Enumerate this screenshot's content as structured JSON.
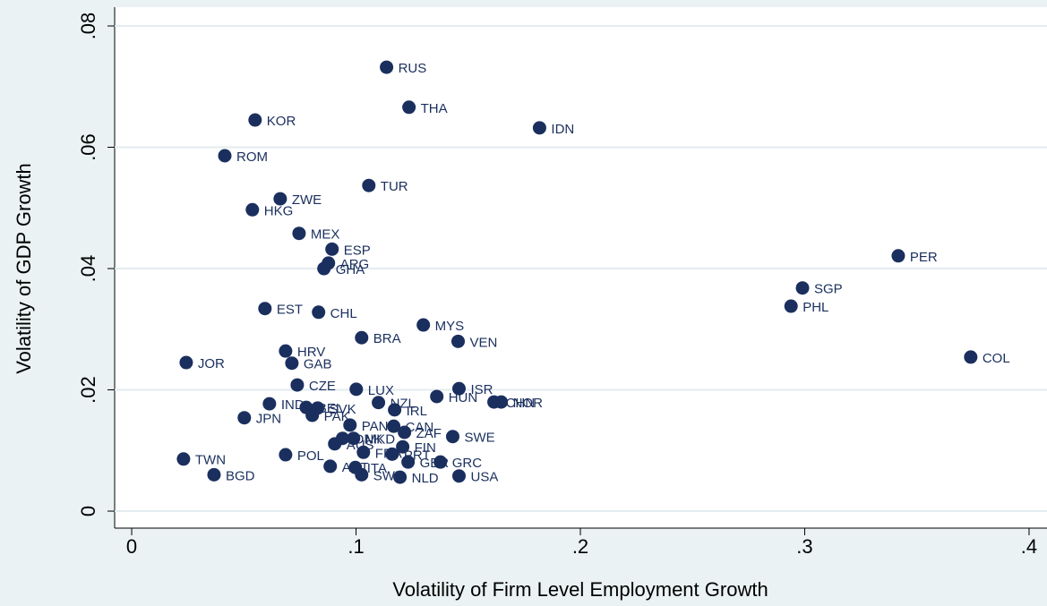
{
  "chart_data": {
    "type": "scatter",
    "xlabel": "Volatility of Firm Level Employment Growth",
    "ylabel": "Volatility of GDP Growth",
    "xlim": [
      -0.0076,
      0.408
    ],
    "ylim": [
      -0.0028,
      0.0831
    ],
    "xticks": [
      0,
      {
        "value": 0.1,
        "label": ".1"
      },
      {
        "value": 0.2,
        "label": ".2"
      },
      {
        "value": 0.3,
        "label": ".3"
      },
      {
        "value": 0.4,
        "label": ".4"
      }
    ],
    "yticks": [
      0,
      {
        "value": 0.02,
        "label": ".02"
      },
      {
        "value": 0.04,
        "label": ".04"
      },
      {
        "value": 0.06,
        "label": ".06"
      },
      {
        "value": 0.08,
        "label": ".08"
      }
    ],
    "grid": true,
    "color": "#1a2f5e",
    "labels": [
      "RUS",
      "THA",
      "IDN",
      "KOR",
      "ROM",
      "TUR",
      "ZWE",
      "HKG",
      "MEX",
      "ESP",
      "ARG",
      "GHA",
      "PER",
      "SGP",
      "PHL",
      "EST",
      "CHL",
      "MYS",
      "BRA",
      "VEN",
      "HRV",
      "GAB",
      "JOR",
      "COL",
      "CZE",
      "LUX",
      "ISR",
      "HUN",
      "CHN",
      "NOR",
      "NZL",
      "IND",
      "IRL",
      "BEL",
      "SVK",
      "PAK",
      "JPN",
      "PAN",
      "CAN",
      "ZAF",
      "SWE",
      "DNK",
      "MKD",
      "AUS",
      "FIN",
      "FRA",
      "PRT",
      "POL",
      "TWN",
      "GBR",
      "GRC",
      "AUT",
      "ITA",
      "BGD",
      "SWZ",
      "NLD",
      "USA"
    ],
    "x": [
      0.1136,
      0.1236,
      0.1818,
      0.055,
      0.0415,
      0.1057,
      0.0662,
      0.0538,
      0.0746,
      0.0893,
      0.0877,
      0.0857,
      0.3417,
      0.299,
      0.2939,
      0.0594,
      0.0833,
      0.13,
      0.1025,
      0.1455,
      0.0686,
      0.0714,
      0.0243,
      0.374,
      0.0738,
      0.1001,
      0.1459,
      0.136,
      0.1615,
      0.1647,
      0.11,
      0.0614,
      0.1172,
      0.0778,
      0.0829,
      0.0805,
      0.0502,
      0.0973,
      0.1168,
      0.1216,
      0.1431,
      0.094,
      0.0989,
      0.0905,
      0.1208,
      0.1033,
      0.1161,
      0.0686,
      0.0231,
      0.1232,
      0.1376,
      0.0885,
      0.0997,
      0.0367,
      0.1025,
      0.1196,
      0.1459
    ],
    "values": [
      0.0732,
      0.0666,
      0.0632,
      0.0645,
      0.0586,
      0.0537,
      0.0515,
      0.0497,
      0.0458,
      0.0432,
      0.0409,
      0.04,
      0.0421,
      0.0368,
      0.0338,
      0.0334,
      0.0328,
      0.0307,
      0.0286,
      0.028,
      0.0264,
      0.0244,
      0.0245,
      0.0254,
      0.0208,
      0.0201,
      0.0202,
      0.0189,
      0.018,
      0.018,
      0.0179,
      0.0177,
      0.0167,
      0.0171,
      0.017,
      0.0158,
      0.0154,
      0.0142,
      0.014,
      0.013,
      0.0123,
      0.012,
      0.012,
      0.0111,
      0.0106,
      0.0097,
      0.0094,
      0.0093,
      0.0086,
      0.0081,
      0.0081,
      0.0074,
      0.0072,
      0.006,
      0.006,
      0.0056,
      0.0058
    ]
  }
}
